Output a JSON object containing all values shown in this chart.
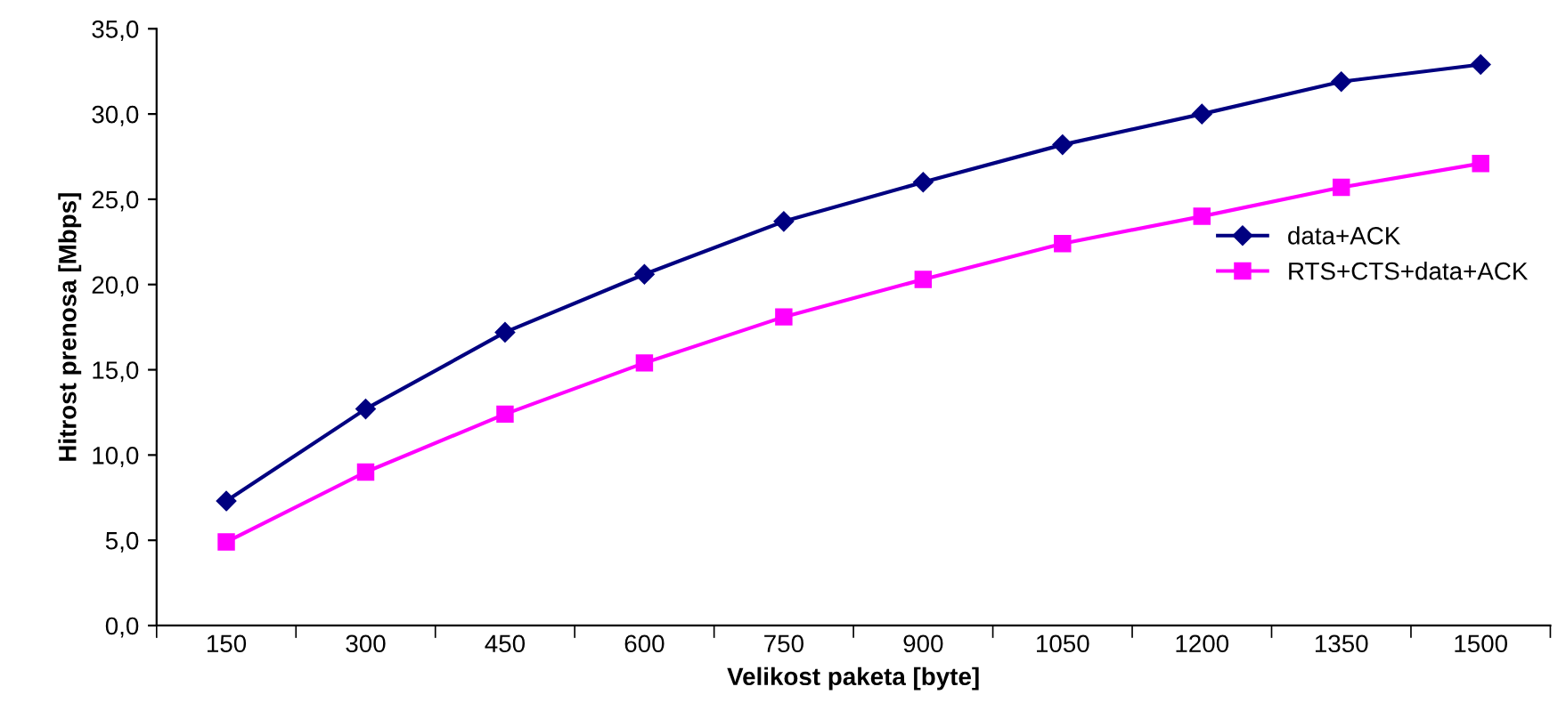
{
  "chart_data": {
    "type": "line",
    "xlabel": "Velikost paketa [byte]",
    "ylabel": "Hitrost prenosa [Mbps]",
    "categories": [
      "150",
      "300",
      "450",
      "600",
      "750",
      "900",
      "1050",
      "1200",
      "1350",
      "1500"
    ],
    "series": [
      {
        "name": "data+ACK",
        "color": "#000080",
        "marker": "diamond",
        "values": [
          7.3,
          12.7,
          17.2,
          20.6,
          23.7,
          26.0,
          28.2,
          30.0,
          31.9,
          32.9
        ]
      },
      {
        "name": "RTS+CTS+data+ACK",
        "color": "#ff00ff",
        "marker": "square",
        "values": [
          4.9,
          9.0,
          12.4,
          15.4,
          18.1,
          20.3,
          22.4,
          24.0,
          25.7,
          27.1
        ]
      }
    ],
    "ylim": [
      0,
      35
    ],
    "yticks": [
      {
        "value": 0,
        "label": "0,0"
      },
      {
        "value": 5,
        "label": "5,0"
      },
      {
        "value": 10,
        "label": "10,0"
      },
      {
        "value": 15,
        "label": "15,0"
      },
      {
        "value": 20,
        "label": "20,0"
      },
      {
        "value": 25,
        "label": "25,0"
      },
      {
        "value": 30,
        "label": "30,0"
      },
      {
        "value": 35,
        "label": "35,0"
      }
    ],
    "legend": "right",
    "grid": false,
    "line_style": "solid"
  }
}
